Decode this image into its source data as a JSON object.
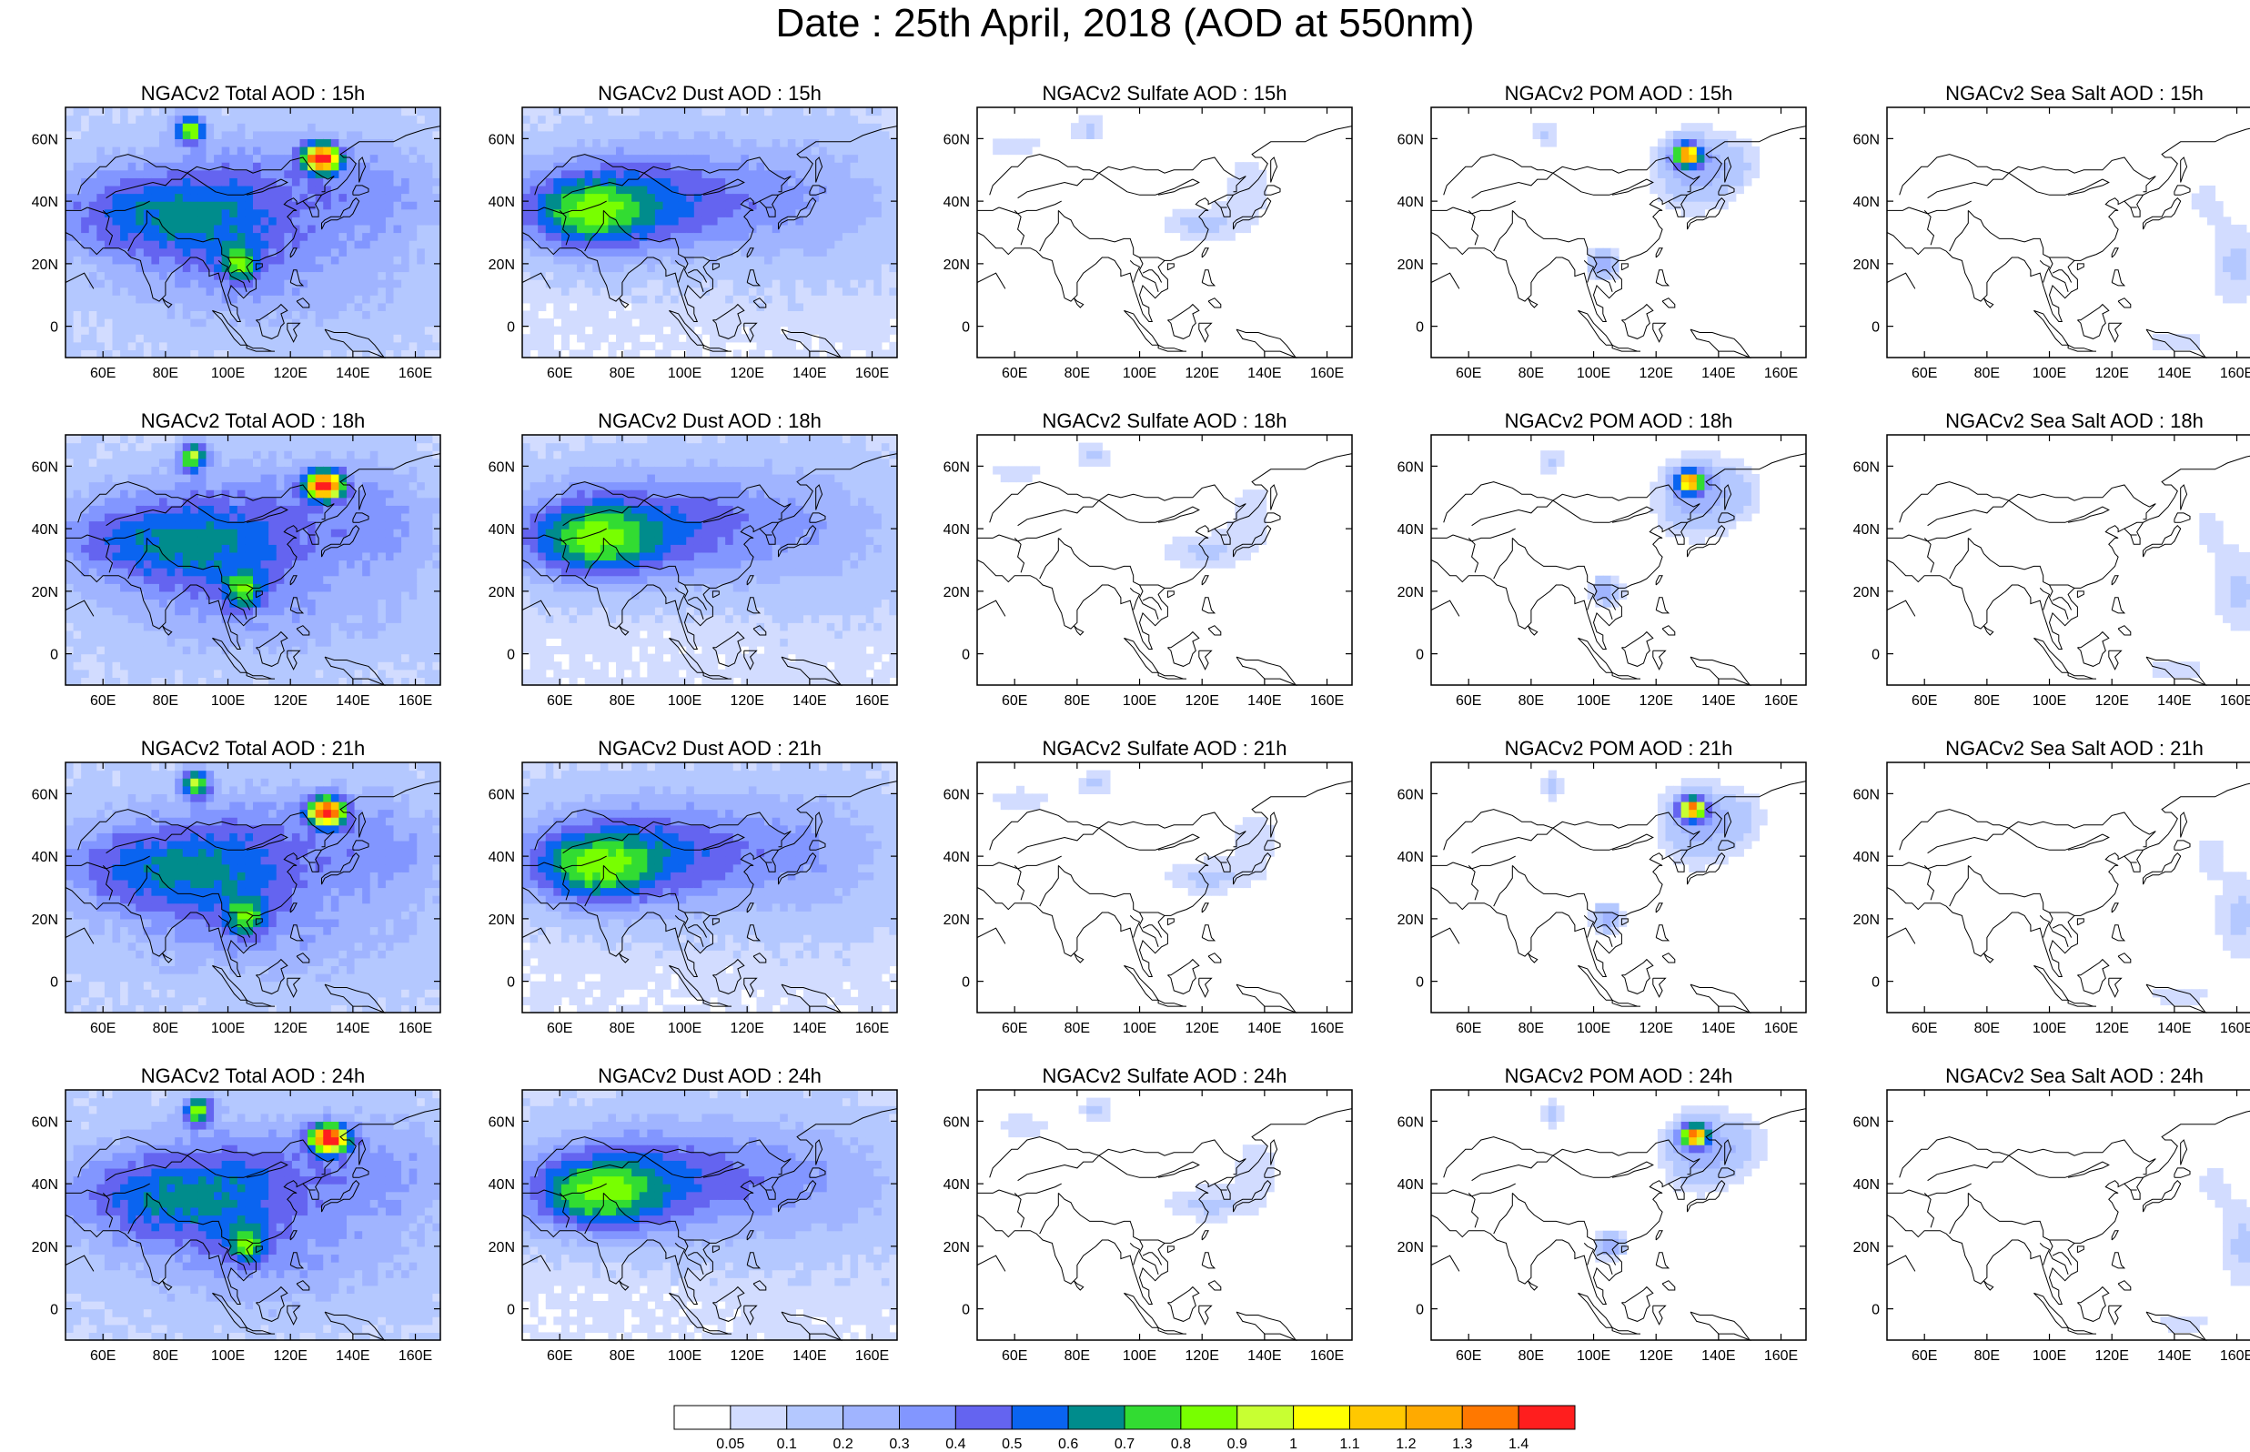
{
  "title": "Date : 25th April, 2018 (AOD at 550nm)",
  "map": {
    "projection": "cylindrical equidistant",
    "lon_range": [
      48,
      168
    ],
    "lat_range": [
      -10,
      70
    ],
    "lon_ticks": [
      60,
      80,
      100,
      120,
      140,
      160
    ],
    "lon_tick_labels": [
      "60E",
      "80E",
      "100E",
      "120E",
      "140E",
      "160E"
    ],
    "lat_ticks": [
      0,
      20,
      40,
      60
    ],
    "lat_tick_labels": [
      "0",
      "20N",
      "40N",
      "60N"
    ]
  },
  "panels": [
    {
      "title": "NGACv2 Total AOD : 15h",
      "species": "total",
      "hour": 15
    },
    {
      "title": "NGACv2 Dust AOD : 15h",
      "species": "dust",
      "hour": 15
    },
    {
      "title": "NGACv2 Sulfate AOD : 15h",
      "species": "sulfate",
      "hour": 15
    },
    {
      "title": "NGACv2 POM AOD : 15h",
      "species": "pom",
      "hour": 15
    },
    {
      "title": "NGACv2 Sea Salt AOD : 15h",
      "species": "seasalt",
      "hour": 15
    },
    {
      "title": "NGACv2 Total AOD : 18h",
      "species": "total",
      "hour": 18
    },
    {
      "title": "NGACv2 Dust AOD : 18h",
      "species": "dust",
      "hour": 18
    },
    {
      "title": "NGACv2 Sulfate AOD : 18h",
      "species": "sulfate",
      "hour": 18
    },
    {
      "title": "NGACv2 POM AOD : 18h",
      "species": "pom",
      "hour": 18
    },
    {
      "title": "NGACv2 Sea Salt AOD : 18h",
      "species": "seasalt",
      "hour": 18
    },
    {
      "title": "NGACv2 Total AOD : 21h",
      "species": "total",
      "hour": 21
    },
    {
      "title": "NGACv2 Dust AOD : 21h",
      "species": "dust",
      "hour": 21
    },
    {
      "title": "NGACv2 Sulfate AOD : 21h",
      "species": "sulfate",
      "hour": 21
    },
    {
      "title": "NGACv2 POM AOD : 21h",
      "species": "pom",
      "hour": 21
    },
    {
      "title": "NGACv2 Sea Salt AOD : 21h",
      "species": "seasalt",
      "hour": 21
    },
    {
      "title": "NGACv2 Total AOD : 24h",
      "species": "total",
      "hour": 24
    },
    {
      "title": "NGACv2 Dust AOD : 24h",
      "species": "dust",
      "hour": 24
    },
    {
      "title": "NGACv2 Sulfate AOD : 24h",
      "species": "sulfate",
      "hour": 24
    },
    {
      "title": "NGACv2 POM AOD : 24h",
      "species": "pom",
      "hour": 24
    },
    {
      "title": "NGACv2 Sea Salt  AOD : 24h",
      "species": "seasalt",
      "hour": 24
    }
  ],
  "colorbar": {
    "colors": [
      "#ffffff",
      "#d2dcff",
      "#b4c8ff",
      "#a0b4ff",
      "#8296ff",
      "#6464f0",
      "#0a64f0",
      "#008c8c",
      "#32dc32",
      "#78ff00",
      "#c8ff32",
      "#ffff00",
      "#ffc800",
      "#ffaa00",
      "#ff7800",
      "#ff1e1e"
    ],
    "labels": [
      "0.05",
      "0.1",
      "0.2",
      "0.3",
      "0.4",
      "0.5",
      "0.6",
      "0.7",
      "0.8",
      "0.9",
      "1",
      "1.1",
      "1.2",
      "1.3",
      "1.4"
    ]
  },
  "chart_data": {
    "type": "heatmap",
    "variable": "AOD at 550nm",
    "hours": [
      15,
      18,
      21,
      24
    ],
    "species": [
      "Total",
      "Dust",
      "Sulfate",
      "POM",
      "Sea Salt"
    ],
    "features": {
      "total": [
        {
          "lon": 88,
          "lat": 63,
          "sx": 3,
          "sy": 3,
          "v": 0.78
        },
        {
          "lon": 130,
          "lat": 54,
          "sx": 4,
          "sy": 3,
          "v": 1.35
        },
        {
          "lon": 70,
          "lat": 36,
          "sx": 22,
          "sy": 10,
          "v": 0.35
        },
        {
          "lon": 100,
          "lat": 30,
          "sx": 22,
          "sy": 12,
          "v": 0.25
        },
        {
          "lon": 104,
          "lat": 20,
          "sx": 4,
          "sy": 4,
          "v": 0.45
        },
        {
          "lon": 112,
          "lat": 47,
          "sx": 30,
          "sy": 12,
          "v": 0.22
        },
        {
          "lon": 150,
          "lat": 40,
          "sx": 14,
          "sy": 14,
          "v": 0.15
        },
        {
          "lon": 112,
          "lat": 12,
          "sx": 35,
          "sy": 12,
          "v": 0.14
        }
      ],
      "dust": [
        {
          "lon": 68,
          "lat": 36,
          "sx": 14,
          "sy": 8,
          "v": 0.45
        },
        {
          "lon": 80,
          "lat": 40,
          "sx": 26,
          "sy": 12,
          "v": 0.3
        },
        {
          "lon": 105,
          "lat": 42,
          "sx": 32,
          "sy": 14,
          "v": 0.2
        },
        {
          "lon": 145,
          "lat": 40,
          "sx": 22,
          "sy": 18,
          "v": 0.12
        }
      ],
      "sulfate": [
        {
          "lon": 84,
          "lat": 63,
          "sx": 4,
          "sy": 3,
          "v": 0.12
        },
        {
          "lon": 60,
          "lat": 58,
          "sx": 8,
          "sy": 3,
          "v": 0.08
        },
        {
          "lon": 120,
          "lat": 33,
          "sx": 10,
          "sy": 4,
          "v": 0.12
        },
        {
          "lon": 135,
          "lat": 45,
          "sx": 6,
          "sy": 8,
          "v": 0.08
        }
      ],
      "pom": [
        {
          "lon": 130,
          "lat": 55,
          "sx": 3,
          "sy": 2.5,
          "v": 1.2
        },
        {
          "lon": 132,
          "lat": 50,
          "sx": 8,
          "sy": 8,
          "v": 0.25
        },
        {
          "lon": 103,
          "lat": 20,
          "sx": 3,
          "sy": 3,
          "v": 0.3
        },
        {
          "lon": 85,
          "lat": 62,
          "sx": 3,
          "sy": 3,
          "v": 0.12
        },
        {
          "lon": 145,
          "lat": 52,
          "sx": 6,
          "sy": 6,
          "v": 0.1
        }
      ],
      "seasalt": [
        {
          "lon": 160,
          "lat": 20,
          "sx": 6,
          "sy": 10,
          "v": 0.12
        },
        {
          "lon": 150,
          "lat": 40,
          "sx": 4,
          "sy": 6,
          "v": 0.07
        },
        {
          "lon": 140,
          "lat": -5,
          "sx": 10,
          "sy": 3,
          "v": 0.07
        }
      ]
    }
  }
}
